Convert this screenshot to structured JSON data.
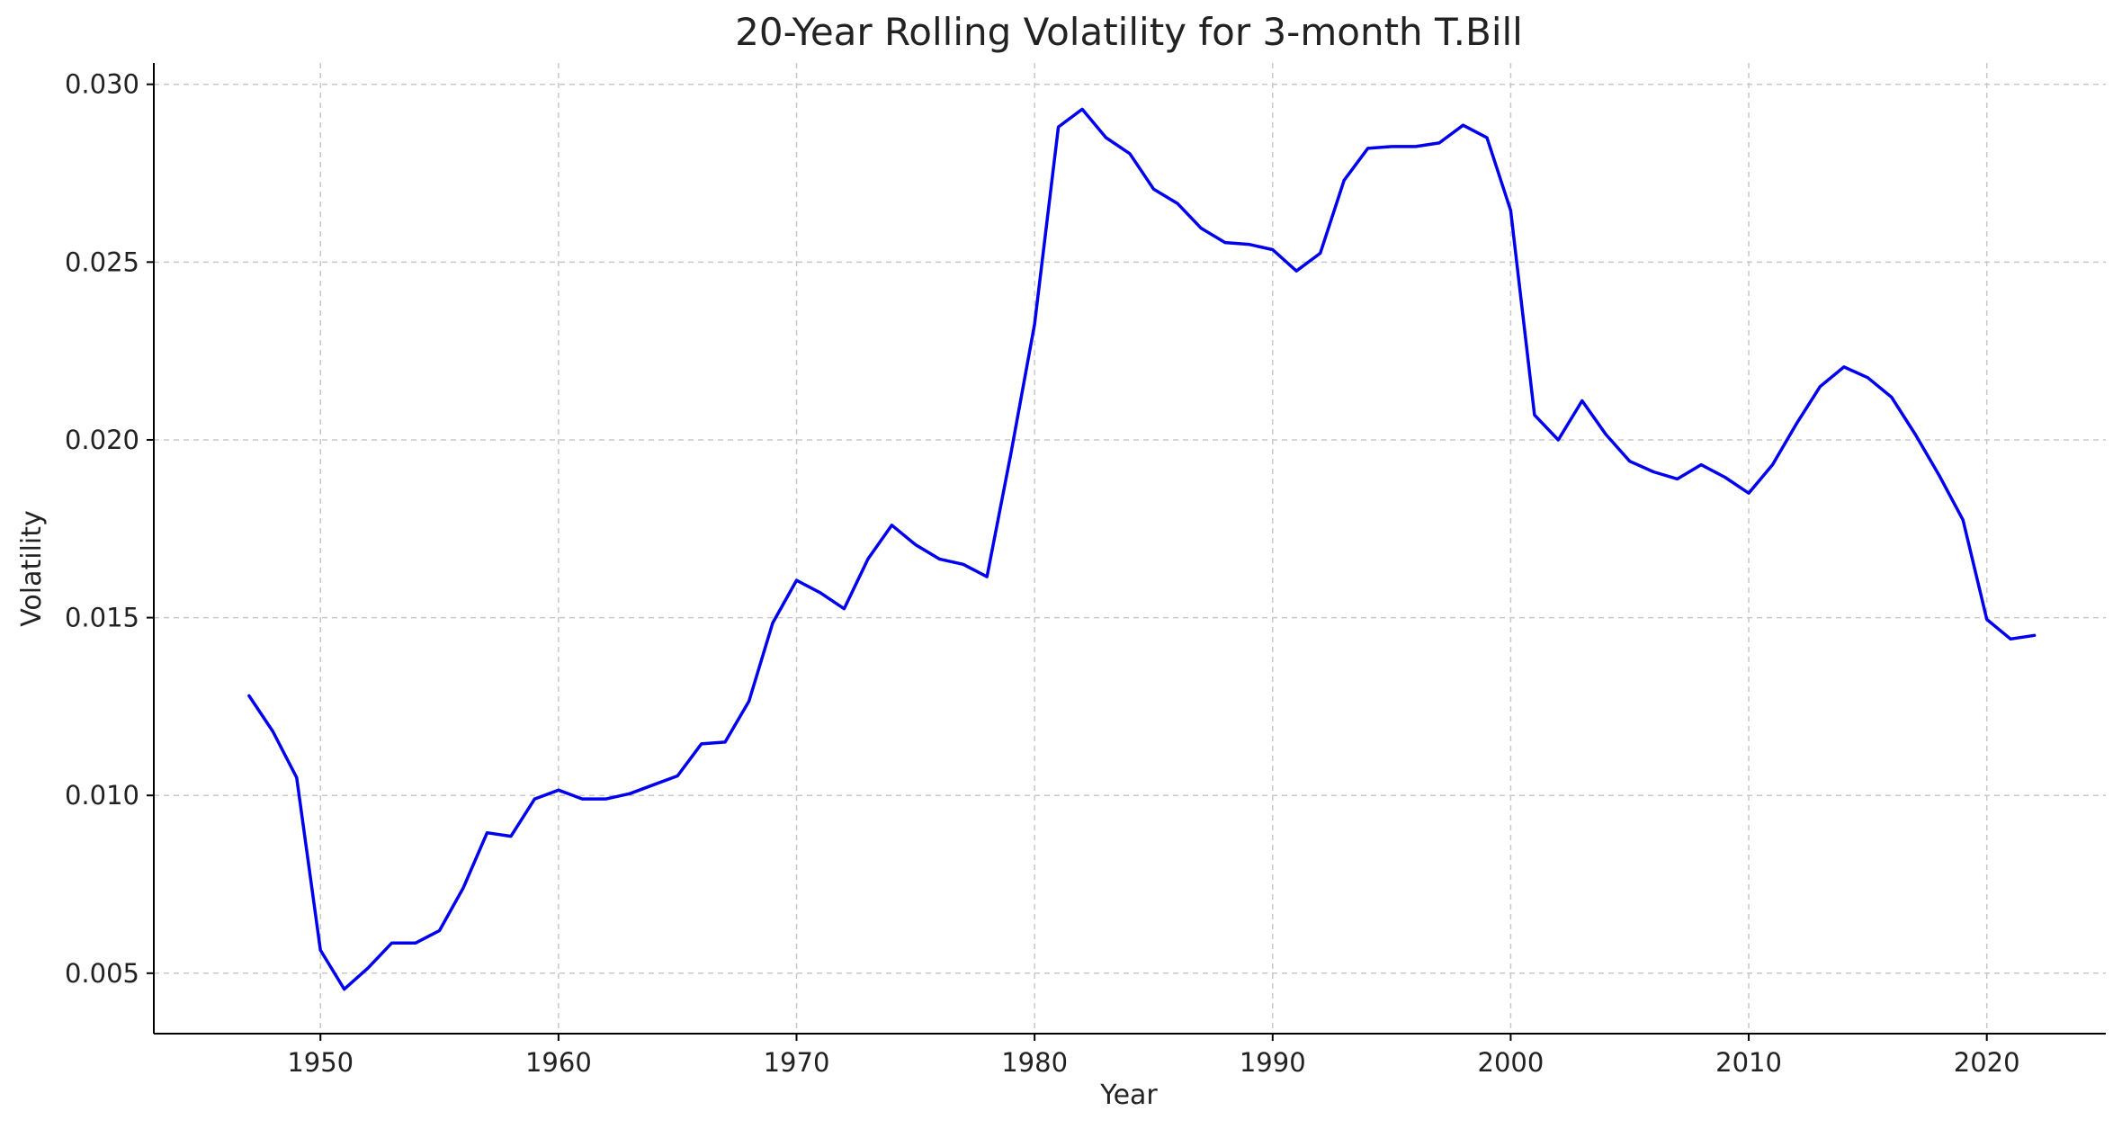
{
  "chart_data": {
    "type": "line",
    "title": "20-Year Rolling Volatility for 3-month T.Bill",
    "xlabel": "Year",
    "ylabel": "Volatility",
    "xlim": [
      1943,
      2025
    ],
    "ylim": [
      0.0033,
      0.0306
    ],
    "xticks": [
      1950,
      1960,
      1970,
      1980,
      1990,
      2000,
      2010,
      2020
    ],
    "xtick_labels": [
      "1950",
      "1960",
      "1970",
      "1980",
      "1990",
      "2000",
      "2010",
      "2020"
    ],
    "yticks": [
      0.005,
      0.01,
      0.015,
      0.02,
      0.025,
      0.03
    ],
    "ytick_labels": [
      "0.005",
      "0.010",
      "0.015",
      "0.020",
      "0.025",
      "0.030"
    ],
    "grid": true,
    "line_color": "#0000ee",
    "x": [
      1947,
      1948,
      1949,
      1950,
      1951,
      1952,
      1953,
      1954,
      1955,
      1956,
      1957,
      1958,
      1959,
      1960,
      1961,
      1962,
      1963,
      1964,
      1965,
      1966,
      1967,
      1968,
      1969,
      1970,
      1971,
      1972,
      1973,
      1974,
      1975,
      1976,
      1977,
      1978,
      1979,
      1980,
      1981,
      1982,
      1983,
      1984,
      1985,
      1986,
      1987,
      1988,
      1989,
      1990,
      1991,
      1992,
      1993,
      1994,
      1995,
      1996,
      1997,
      1998,
      1999,
      2000,
      2001,
      2002,
      2003,
      2004,
      2005,
      2006,
      2007,
      2008,
      2009,
      2010,
      2011,
      2012,
      2013,
      2014,
      2015,
      2016,
      2017,
      2018,
      2019,
      2020,
      2021,
      2022
    ],
    "y": [
      0.0128,
      0.0118,
      0.0105,
      0.00565,
      0.00455,
      0.00515,
      0.00585,
      0.00585,
      0.0062,
      0.0074,
      0.00895,
      0.00885,
      0.0099,
      0.01015,
      0.0099,
      0.0099,
      0.01005,
      0.0103,
      0.01055,
      0.01145,
      0.0115,
      0.01265,
      0.01485,
      0.01605,
      0.0157,
      0.01525,
      0.01665,
      0.0176,
      0.01705,
      0.01665,
      0.0165,
      0.01615,
      0.0196,
      0.02325,
      0.0288,
      0.0293,
      0.0285,
      0.02805,
      0.02705,
      0.02665,
      0.02595,
      0.02555,
      0.0255,
      0.02535,
      0.02475,
      0.02525,
      0.0273,
      0.0282,
      0.02825,
      0.02825,
      0.02835,
      0.02885,
      0.0285,
      0.02645,
      0.0207,
      0.02,
      0.0211,
      0.02015,
      0.0194,
      0.0191,
      0.0189,
      0.0193,
      0.01895,
      0.0185,
      0.0193,
      0.02045,
      0.0215,
      0.02205,
      0.02175,
      0.0212,
      0.02015,
      0.019,
      0.01775,
      0.01495,
      0.0144,
      0.0145
    ]
  }
}
